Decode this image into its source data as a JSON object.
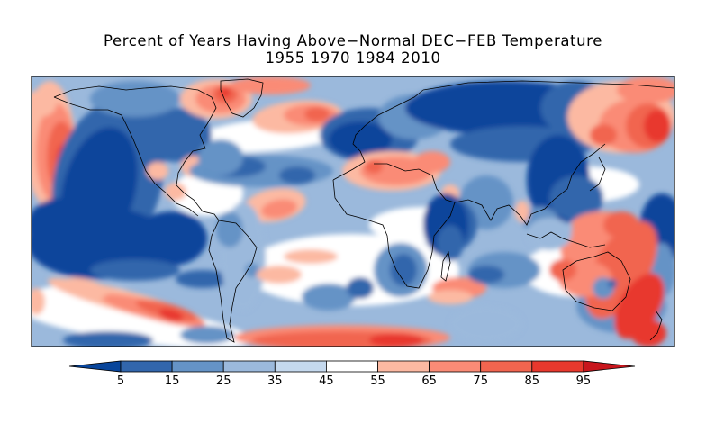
{
  "figure": {
    "title": "Percent of Years Having Above−Normal DEC−FEB Temperature",
    "subtitle": "1955 1970 1984 2010"
  },
  "map": {
    "projection": "cylindrical equidistant",
    "extent": {
      "lon": [
        0,
        360
      ],
      "lat": [
        -60,
        75
      ]
    },
    "variable": "percent of years with above-normal DEC-FEB temperature",
    "units": "%",
    "features": [
      {
        "region": "North Pacific / Bering Sea",
        "class": "55-95",
        "sign": "warm"
      },
      {
        "region": "NE Pacific off western North America",
        "class": "<5-15",
        "sign": "cold"
      },
      {
        "region": "Greenland / Baffin Bay",
        "class": "65-95",
        "sign": "warm"
      },
      {
        "region": "North Atlantic south of Iceland",
        "class": "65-85",
        "sign": "warm"
      },
      {
        "region": "Europe",
        "class": "<5-25",
        "sign": "cold"
      },
      {
        "region": "Northern Russia / Siberia",
        "class": "<5-15",
        "sign": "cold"
      },
      {
        "region": "North Africa / Sahara",
        "class": "55-85",
        "sign": "warm"
      },
      {
        "region": "East China / Korea / Japan",
        "class": "<5-15",
        "sign": "cold"
      },
      {
        "region": "Far East Russia / NW Pacific",
        "class": "65-95",
        "sign": "warm"
      },
      {
        "region": "Eastern tropical Pacific",
        "class": "<5",
        "sign": "cold"
      },
      {
        "region": "Subtropical North Atlantic",
        "class": "55-75",
        "sign": "warm"
      },
      {
        "region": "Southeast Pacific band",
        "class": "55-95",
        "sign": "warm"
      },
      {
        "region": "Southern Ocean (Atlantic/Indian sector)",
        "class": "65-95",
        "sign": "warm"
      },
      {
        "region": "Maritime Continent / Australia / SW Pacific",
        "class": "65-95",
        "sign": "warm"
      },
      {
        "region": "Southern Africa",
        "class": "15-35",
        "sign": "cold"
      },
      {
        "region": "Western Indian Ocean",
        "class": "<5-15",
        "sign": "cold"
      }
    ]
  },
  "colorbar": {
    "ticks": [
      "5",
      "15",
      "25",
      "35",
      "45",
      "55",
      "65",
      "75",
      "85",
      "95"
    ],
    "classes": [
      {
        "range": "<5",
        "color": "#08459b"
      },
      {
        "range": "5-15",
        "color": "#3266ac"
      },
      {
        "range": "15-25",
        "color": "#6593c6"
      },
      {
        "range": "25-35",
        "color": "#9bb9dc"
      },
      {
        "range": "35-45",
        "color": "#c5d9ee"
      },
      {
        "range": "45-55",
        "color": "#ffffff"
      },
      {
        "range": "55-65",
        "color": "#fcb9a2"
      },
      {
        "range": "65-75",
        "color": "#fa8b76"
      },
      {
        "range": "75-85",
        "color": "#f1654f"
      },
      {
        "range": "85-95",
        "color": "#e8382d"
      },
      {
        "range": ">95",
        "color": "#c8161d"
      }
    ]
  }
}
